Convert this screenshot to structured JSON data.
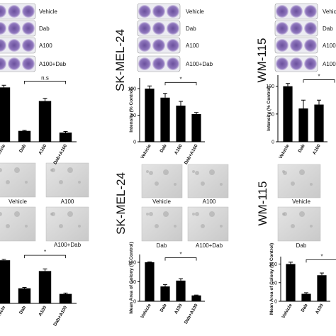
{
  "plates": [
    {
      "labels": [
        "Vehicle",
        "Dab",
        "A100",
        "A100+Dab"
      ]
    },
    {
      "cell_line": "SK-MEL-24",
      "labels": [
        "Vehicle",
        "Dab",
        "A100",
        "A100+Dab"
      ]
    },
    {
      "cell_line": "WM-115",
      "labels": [
        "Vehicle",
        "Dab",
        "A100",
        "A100+Dab"
      ]
    }
  ],
  "micro": [
    {
      "labels": [
        "Vehicle",
        "A100",
        "A100+Dab"
      ]
    },
    {
      "cell_line": "SK-MEL-24",
      "labels": [
        "Vehicle",
        "A100",
        "Dab",
        "A100+Dab"
      ]
    },
    {
      "cell_line": "WM-115",
      "labels": [
        "Vehicle",
        "Dab"
      ]
    }
  ],
  "chart_data": [
    {
      "type": "bar",
      "categories": [
        "Vehicle",
        "Dab",
        "A100",
        "Dab+A100"
      ],
      "values": [
        100,
        20,
        75,
        17
      ],
      "errors": [
        4,
        1,
        5,
        2
      ],
      "ylim": [
        0,
        120
      ],
      "annotation": "n.s",
      "color": "#000000"
    },
    {
      "type": "bar",
      "ylabel": "Intensity (% Control)",
      "categories": [
        "Vehicle",
        "Dab",
        "A100",
        "Dab+A100"
      ],
      "values": [
        100,
        83,
        68,
        52
      ],
      "errors": [
        5,
        8,
        8,
        3
      ],
      "ylim": [
        0,
        120
      ],
      "yticks": [
        0,
        50,
        100
      ],
      "annotation": "*",
      "color": "#000000"
    },
    {
      "type": "bar",
      "ylabel": "Intensity (% Control)",
      "categories": [
        "Vehicle",
        "Dab",
        "A100"
      ],
      "values": [
        100,
        60,
        67
      ],
      "errors": [
        5,
        15,
        8
      ],
      "ylim": [
        0,
        120
      ],
      "yticks": [
        0,
        50,
        100
      ],
      "annotation": "*",
      "color": "#000000"
    },
    {
      "type": "bar",
      "categories": [
        "Vehicle",
        "Dab",
        "A100",
        "Dab+A100"
      ],
      "values": [
        100,
        35,
        75,
        22
      ],
      "errors": [
        2,
        2,
        5,
        2
      ],
      "ylim": [
        0,
        120
      ],
      "annotation": "*",
      "color": "#000000"
    },
    {
      "type": "bar",
      "ylabel": "Mean Area of Colony (% Control)",
      "categories": [
        "Vehicle",
        "Dab",
        "A100",
        "Dab+A100"
      ],
      "values": [
        100,
        38,
        53,
        15
      ],
      "errors": [
        1,
        5,
        5,
        1
      ],
      "ylim": [
        0,
        120
      ],
      "yticks": [
        0,
        50,
        100
      ],
      "annotation": "*",
      "color": "#000000"
    },
    {
      "type": "bar",
      "ylabel": "Mean Area of Colony (% Control)",
      "categories": [
        "Vehicle",
        "Dab",
        "A100"
      ],
      "values": [
        100,
        20,
        70
      ],
      "errors": [
        5,
        3,
        6
      ],
      "ylim": [
        0,
        120
      ],
      "yticks": [
        0,
        50,
        100
      ],
      "annotation": "*",
      "color": "#000000"
    }
  ]
}
